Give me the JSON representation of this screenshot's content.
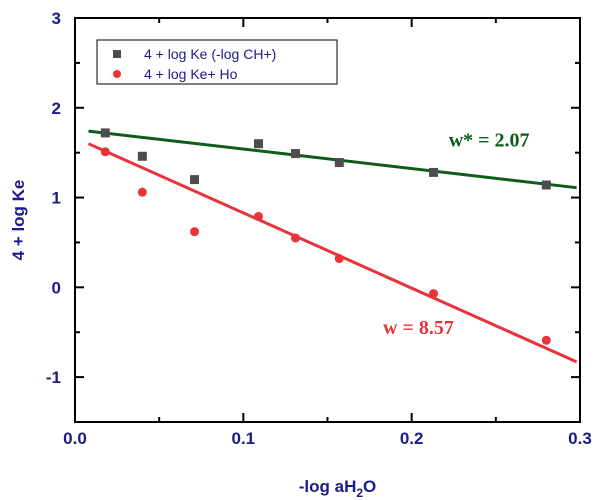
{
  "chart_data": {
    "type": "scatter",
    "xlabel": "-log aH2O",
    "ylabel": "4 + log Ke",
    "xlim": [
      0.0,
      0.3
    ],
    "ylim": [
      -1.5,
      3
    ],
    "xticks": [
      0.0,
      0.1,
      0.2,
      0.3
    ],
    "xtick_labels": [
      "0.0",
      "0.1",
      "0.2",
      "0.3"
    ],
    "yticks": [
      -1,
      0,
      1,
      2,
      3
    ],
    "ytick_labels": [
      "-1",
      "0",
      "1",
      "2",
      "3"
    ],
    "grid": false,
    "legend_position": "top-left",
    "series": [
      {
        "name": "4 + log Ke (-log CH+)",
        "marker": "square",
        "color": "#4d4d4d",
        "x": [
          0.018,
          0.04,
          0.071,
          0.109,
          0.131,
          0.157,
          0.213,
          0.28
        ],
        "y": [
          1.72,
          1.46,
          1.2,
          1.6,
          1.49,
          1.39,
          1.28,
          1.14
        ],
        "fit": {
          "x": [
            0.008,
            0.298
          ],
          "y": [
            1.74,
            1.11
          ],
          "color": "#0d5c1a"
        }
      },
      {
        "name": "4 + log Ke+ Ho",
        "marker": "circle",
        "color": "#e8333a",
        "x": [
          0.018,
          0.04,
          0.071,
          0.109,
          0.131,
          0.157,
          0.213,
          0.28
        ],
        "y": [
          1.51,
          1.06,
          0.62,
          0.79,
          0.55,
          0.32,
          -0.07,
          -0.59
        ],
        "fit": {
          "x": [
            0.008,
            0.298
          ],
          "y": [
            1.6,
            -0.83
          ],
          "color": "#e8333a"
        }
      }
    ],
    "annotations": [
      {
        "text": "w* = 2.07",
        "x": 0.222,
        "y": 1.57,
        "color": "#0d5c1a"
      },
      {
        "text": "w = 8.57",
        "x": 0.183,
        "y": -0.52,
        "color": "#e8333a"
      }
    ]
  }
}
